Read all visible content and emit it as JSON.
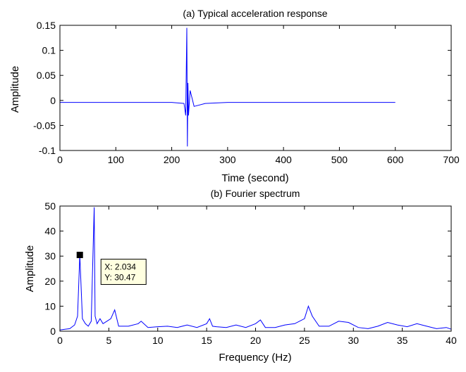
{
  "chart_data": [
    {
      "type": "line",
      "title": "(a) Typical acceleration response",
      "xlabel": "Time (second)",
      "ylabel": "Amplitude",
      "xlim": [
        0,
        700
      ],
      "ylim": [
        -0.1,
        0.15
      ],
      "xticks": [
        0,
        100,
        200,
        300,
        400,
        500,
        600,
        700
      ],
      "yticks": [
        -0.1,
        -0.05,
        0,
        0.05,
        0.1,
        0.15
      ],
      "xtick_labels": [
        "0",
        "100",
        "200",
        "300",
        "400",
        "500",
        "600",
        "700"
      ],
      "ytick_labels": [
        "-0.1",
        "-0.05",
        "0",
        "0.05",
        "0.1",
        "0.15"
      ],
      "grid": false,
      "line_color": "#0000ff",
      "series": [
        {
          "x": [
            0,
            100,
            200,
            222,
            225,
            227,
            228,
            229,
            230,
            233,
            240,
            260,
            300,
            400,
            500,
            600
          ],
          "values": [
            -0.004,
            -0.004,
            -0.004,
            -0.006,
            -0.03,
            0.145,
            -0.092,
            0.035,
            -0.03,
            0.02,
            -0.012,
            -0.006,
            -0.004,
            -0.004,
            -0.004,
            -0.004
          ]
        }
      ]
    },
    {
      "type": "line",
      "title": "(b) Fourier spectrum",
      "xlabel": "Frequency (Hz)",
      "ylabel": "Amplitude",
      "xlim": [
        0,
        40
      ],
      "ylim": [
        0,
        50
      ],
      "xticks": [
        0,
        5,
        10,
        15,
        20,
        25,
        30,
        35,
        40
      ],
      "yticks": [
        0,
        10,
        20,
        30,
        40,
        50
      ],
      "xtick_labels": [
        "0",
        "5",
        "10",
        "15",
        "20",
        "25",
        "30",
        "35",
        "40"
      ],
      "ytick_labels": [
        "0",
        "10",
        "20",
        "30",
        "40",
        "50"
      ],
      "grid": false,
      "line_color": "#0000ff",
      "series": [
        {
          "x": [
            0,
            0.5,
            1.0,
            1.5,
            1.8,
            2.034,
            2.3,
            2.6,
            2.9,
            3.2,
            3.5,
            3.6,
            3.8,
            4.1,
            4.4,
            4.8,
            5.2,
            5.6,
            6.0,
            7.0,
            8.0,
            8.3,
            9.0,
            10.0,
            11.0,
            12.0,
            13.0,
            14.0,
            15.0,
            15.3,
            15.6,
            16.0,
            17.0,
            18.0,
            19.0,
            20.0,
            20.5,
            21.0,
            22.0,
            23.0,
            24.0,
            25.0,
            25.4,
            25.8,
            26.5,
            27.5,
            28.5,
            29.5,
            30.5,
            31.5,
            32.5,
            33.5,
            34.5,
            35.5,
            36.5,
            37.5,
            38.5,
            39.5,
            40.0
          ],
          "values": [
            0.5,
            0.8,
            1.0,
            2.5,
            6.0,
            30.47,
            5.0,
            3.0,
            2.0,
            4.0,
            49.5,
            6.0,
            3.0,
            5.0,
            3.0,
            4.0,
            5.0,
            8.5,
            2.0,
            2.0,
            3.0,
            4.0,
            1.5,
            1.8,
            2.0,
            1.5,
            2.5,
            1.5,
            3.0,
            5.0,
            2.0,
            1.8,
            1.5,
            2.5,
            1.5,
            3.0,
            4.5,
            1.5,
            1.5,
            2.5,
            3.0,
            5.0,
            10.0,
            6.0,
            2.0,
            2.0,
            4.0,
            3.5,
            1.5,
            1.0,
            2.0,
            3.5,
            2.5,
            1.8,
            3.0,
            2.0,
            1.0,
            1.5,
            0.8
          ]
        }
      ],
      "annotation": {
        "x": 2.034,
        "y": 30.47,
        "lines": [
          "X: 2.034",
          "Y: 30.47"
        ]
      }
    }
  ]
}
